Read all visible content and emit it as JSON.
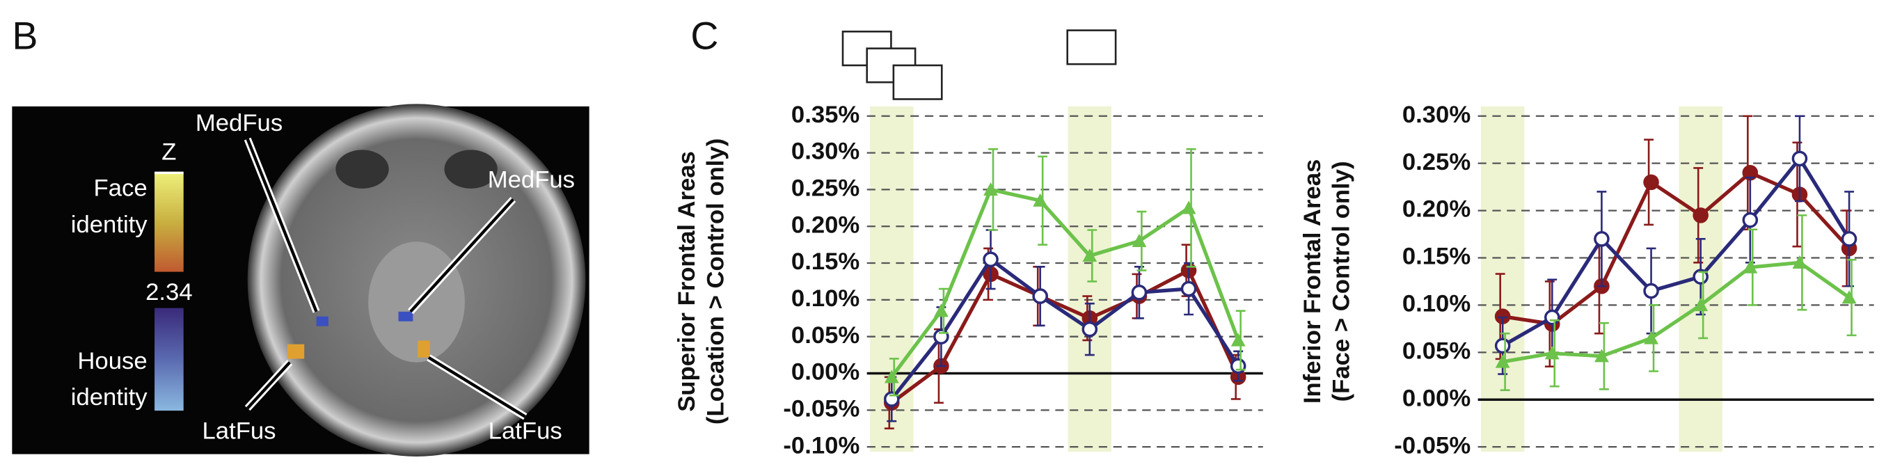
{
  "panel_b": {
    "letter": "B",
    "scale_label": "Z",
    "face_label": [
      "Face",
      "identity"
    ],
    "threshold": "2.34",
    "house_label": [
      "House",
      "identity"
    ],
    "regions": [
      "MedFus",
      "MedFus",
      "LatFus",
      "LatFus"
    ]
  },
  "panel_c": {
    "letter": "C"
  },
  "chart_data": [
    {
      "type": "line",
      "ylabel": [
        "Superior Frontal Areas",
        "(Location > Control only)"
      ],
      "categories": [
        null,
        null,
        null,
        null,
        null,
        null,
        null,
        null
      ],
      "shaded_categories": [
        0,
        4
      ],
      "ylim": [
        -0.1,
        0.35
      ],
      "yticks": [
        {
          "value": -0.1,
          "label": "-0.10%"
        },
        {
          "value": -0.05,
          "label": "-0.05%"
        },
        {
          "value": 0,
          "label": "0.00%"
        },
        {
          "value": 0.05,
          "label": "0.05%"
        },
        {
          "value": 0.1,
          "label": "0.10%"
        },
        {
          "value": 0.15,
          "label": "0.15%"
        },
        {
          "value": 0.2,
          "label": "0.20%"
        },
        {
          "value": 0.25,
          "label": "0.25%"
        },
        {
          "value": 0.3,
          "label": "0.30%"
        },
        {
          "value": 0.35,
          "label": "0.35%"
        }
      ],
      "grid": true,
      "series": [
        {
          "color": "#8b1a1a",
          "marker": "filled-circle",
          "values": [
            -0.04,
            0.01,
            0.135,
            0.105,
            0.075,
            0.105,
            0.14,
            -0.005
          ],
          "errors": [
            0.035,
            0.05,
            0.035,
            0.04,
            0.03,
            0.03,
            0.035,
            0.03
          ]
        },
        {
          "color": "#2a2a7a",
          "marker": "open-circle",
          "values": [
            -0.035,
            0.05,
            0.155,
            0.105,
            0.06,
            0.11,
            0.115,
            0.01
          ],
          "errors": [
            0.03,
            0.04,
            0.04,
            0.04,
            0.035,
            0.035,
            0.035,
            0.02
          ]
        },
        {
          "color": "#6cc24a",
          "marker": "triangle",
          "values": [
            -0.005,
            0.085,
            0.25,
            0.235,
            0.16,
            0.18,
            0.225,
            0.045
          ],
          "errors": [
            0.025,
            0.03,
            0.055,
            0.06,
            0.035,
            0.04,
            0.08,
            0.04
          ]
        }
      ]
    },
    {
      "type": "line",
      "ylabel": [
        "Inferior Frontal Areas",
        "(Face > Control only)"
      ],
      "categories": [
        null,
        null,
        null,
        null,
        null,
        null,
        null,
        null
      ],
      "shaded_categories": [
        0,
        4
      ],
      "ylim": [
        -0.05,
        0.3
      ],
      "yticks": [
        {
          "value": -0.05,
          "label": "-0.05%"
        },
        {
          "value": 0,
          "label": "0.00%"
        },
        {
          "value": 0.05,
          "label": "0.05%"
        },
        {
          "value": 0.1,
          "label": "0.10%"
        },
        {
          "value": 0.15,
          "label": "0.15%"
        },
        {
          "value": 0.2,
          "label": "0.20%"
        },
        {
          "value": 0.25,
          "label": "0.25%"
        },
        {
          "value": 0.3,
          "label": "0.30%"
        }
      ],
      "grid": true,
      "series": [
        {
          "color": "#8b1a1a",
          "marker": "filled-circle",
          "values": [
            0.088,
            0.08,
            0.12,
            0.23,
            0.195,
            0.24,
            0.217,
            0.16
          ],
          "errors": [
            0.045,
            0.045,
            0.05,
            0.045,
            0.05,
            0.06,
            0.055,
            0.04
          ]
        },
        {
          "color": "#2a2a7a",
          "marker": "open-circle",
          "values": [
            0.057,
            0.087,
            0.17,
            0.115,
            0.13,
            0.19,
            0.255,
            0.17
          ],
          "errors": [
            0.03,
            0.04,
            0.05,
            0.045,
            0.04,
            0.045,
            0.045,
            0.05
          ]
        },
        {
          "color": "#6cc24a",
          "marker": "triangle",
          "values": [
            0.04,
            0.049,
            0.046,
            0.065,
            0.1,
            0.14,
            0.145,
            0.108
          ],
          "errors": [
            0.03,
            0.035,
            0.035,
            0.035,
            0.035,
            0.04,
            0.05,
            0.04
          ]
        }
      ]
    }
  ]
}
